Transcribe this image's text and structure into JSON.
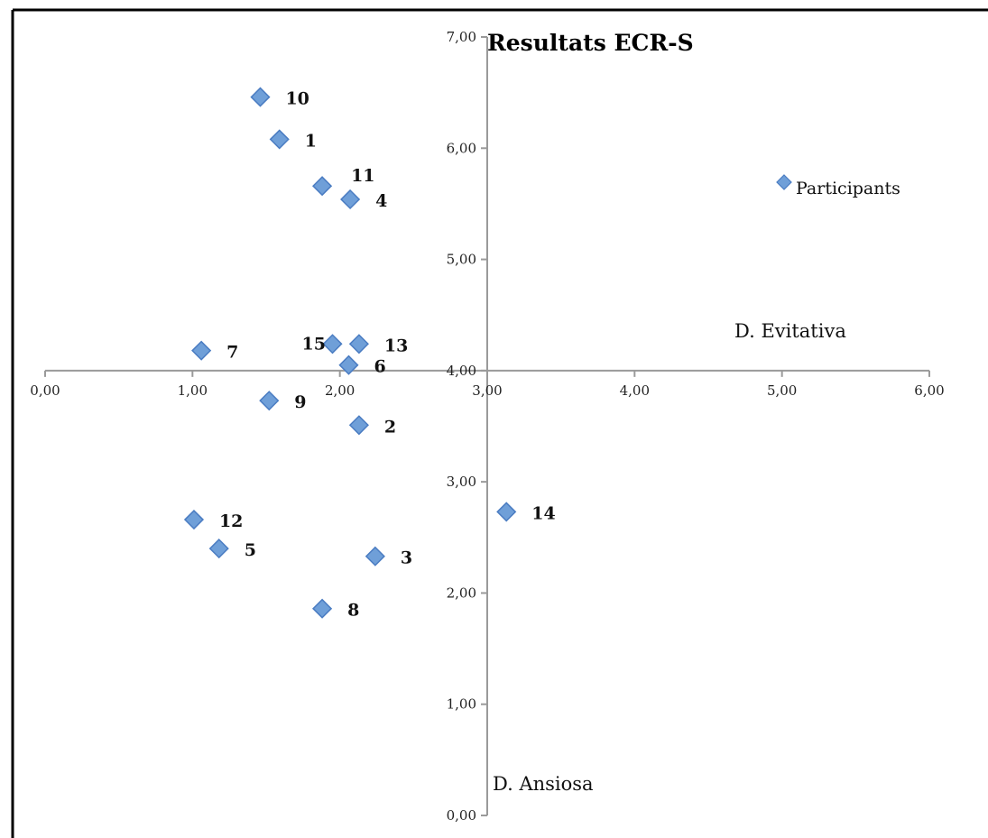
{
  "chart_data": {
    "type": "scatter",
    "title": "Resultats ECR-S",
    "xlabel": "D. Evitativa",
    "ylabel": "D. Ansiosa",
    "xlim": [
      0,
      6
    ],
    "ylim": [
      0,
      7
    ],
    "x_ticks": [
      "0,00",
      "1,00",
      "2,00",
      "3,00",
      "4,00",
      "5,00",
      "6,00"
    ],
    "y_ticks": [
      "0,00",
      "1,00",
      "2,00",
      "3,00",
      "4,00",
      "5,00",
      "6,00",
      "7,00"
    ],
    "axis_cross": {
      "x": 3,
      "y": 4
    },
    "legend": {
      "position": "right",
      "entries": [
        "Participants"
      ]
    },
    "series": [
      {
        "name": "Participants",
        "color": "#6f9fd8",
        "points": [
          {
            "label": "1",
            "x": 1.59,
            "y": 6.08
          },
          {
            "label": "2",
            "x": 2.13,
            "y": 3.51
          },
          {
            "label": "3",
            "x": 2.24,
            "y": 2.33
          },
          {
            "label": "4",
            "x": 2.07,
            "y": 5.54
          },
          {
            "label": "5",
            "x": 1.18,
            "y": 2.4
          },
          {
            "label": "6",
            "x": 2.06,
            "y": 4.05
          },
          {
            "label": "7",
            "x": 1.06,
            "y": 4.18
          },
          {
            "label": "8",
            "x": 1.88,
            "y": 1.86
          },
          {
            "label": "9",
            "x": 1.52,
            "y": 3.73
          },
          {
            "label": "10",
            "x": 1.46,
            "y": 6.46
          },
          {
            "label": "11",
            "x": 1.88,
            "y": 5.66
          },
          {
            "label": "12",
            "x": 1.01,
            "y": 2.66
          },
          {
            "label": "13",
            "x": 2.13,
            "y": 4.24
          },
          {
            "label": "14",
            "x": 3.13,
            "y": 2.73
          },
          {
            "label": "15",
            "x": 1.95,
            "y": 4.24
          }
        ]
      }
    ]
  }
}
